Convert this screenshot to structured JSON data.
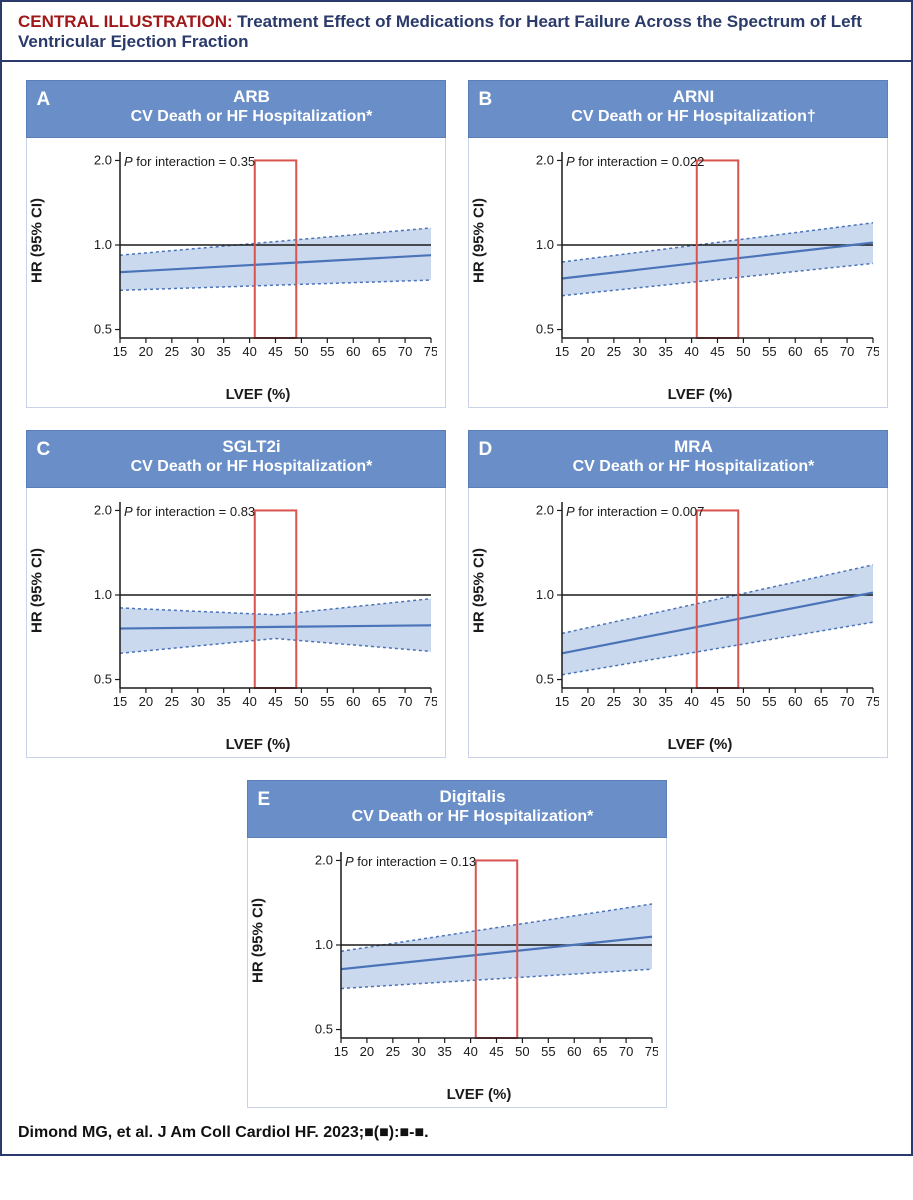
{
  "header": {
    "label": "CENTRAL ILLUSTRATION:",
    "title": "Treatment Effect of Medications for Heart Failure Across the Spectrum of Left Ventricular Ejection Fraction"
  },
  "citation": "Dimond MG, et al. J Am Coll Cardiol HF. 2023;■(■):■-■.",
  "colors": {
    "panel_header_bg": "#6a8fc8",
    "panel_header_border": "#5a7fb8",
    "chart_border": "#c8d3e8",
    "ci_fill": "#a9c0e4",
    "ci_fill_opacity": 0.6,
    "hr_line": "#4a73b8",
    "ci_dash": "#4a73b8",
    "ref_line": "#1a1a1a",
    "axis_line": "#1a1a1a",
    "highlight_box": "#d9534f",
    "text": "#1a1a1a",
    "title_label": "#a01818",
    "title_text": "#2a3a6a"
  },
  "axes": {
    "x_label": "LVEF (%)",
    "y_label": "HR (95% CI)",
    "x_min": 15,
    "x_max": 75,
    "x_ticks": [
      15,
      20,
      25,
      30,
      35,
      40,
      45,
      50,
      55,
      60,
      65,
      70,
      75
    ],
    "y_ticks": [
      0.5,
      1.0,
      2.0
    ],
    "y_min_log": -1.1,
    "y_max_log": 1.1,
    "highlight_x0": 41,
    "highlight_x1": 49
  },
  "panels": [
    {
      "letter": "A",
      "title_main": "ARB",
      "title_sub": "CV Death or HF Hospitalization*",
      "p_label": "P for interaction = 0.35",
      "hr_line": [
        [
          15,
          0.8
        ],
        [
          75,
          0.92
        ]
      ],
      "ci_upper": [
        [
          15,
          0.92
        ],
        [
          75,
          1.15
        ]
      ],
      "ci_lower": [
        [
          15,
          0.69
        ],
        [
          75,
          0.75
        ]
      ]
    },
    {
      "letter": "B",
      "title_main": "ARNI",
      "title_sub": "CV Death or HF Hospitalization†",
      "p_label": "P for interaction = 0.022",
      "hr_line": [
        [
          15,
          0.76
        ],
        [
          75,
          1.02
        ]
      ],
      "ci_upper": [
        [
          15,
          0.87
        ],
        [
          75,
          1.2
        ]
      ],
      "ci_lower": [
        [
          15,
          0.66
        ],
        [
          75,
          0.86
        ]
      ]
    },
    {
      "letter": "C",
      "title_main": "SGLT2i",
      "title_sub": "CV Death or HF Hospitalization*",
      "p_label": "P for interaction = 0.83",
      "hr_line": [
        [
          15,
          0.76
        ],
        [
          75,
          0.78
        ]
      ],
      "ci_upper": [
        [
          15,
          0.9
        ],
        [
          45,
          0.85
        ],
        [
          75,
          0.97
        ]
      ],
      "ci_lower": [
        [
          15,
          0.62
        ],
        [
          45,
          0.7
        ],
        [
          75,
          0.63
        ]
      ]
    },
    {
      "letter": "D",
      "title_main": "MRA",
      "title_sub": "CV Death or HF Hospitalization*",
      "p_label": "P for interaction = 0.007",
      "hr_line": [
        [
          15,
          0.62
        ],
        [
          75,
          1.02
        ]
      ],
      "ci_upper": [
        [
          15,
          0.73
        ],
        [
          75,
          1.28
        ]
      ],
      "ci_lower": [
        [
          15,
          0.52
        ],
        [
          75,
          0.8
        ]
      ]
    },
    {
      "letter": "E",
      "title_main": "Digitalis",
      "title_sub": "CV Death or HF Hospitalization*",
      "p_label": "P for interaction = 0.13",
      "hr_line": [
        [
          15,
          0.82
        ],
        [
          75,
          1.07
        ]
      ],
      "ci_upper": [
        [
          15,
          0.95
        ],
        [
          75,
          1.4
        ]
      ],
      "ci_lower": [
        [
          15,
          0.7
        ],
        [
          75,
          0.82
        ]
      ]
    }
  ]
}
